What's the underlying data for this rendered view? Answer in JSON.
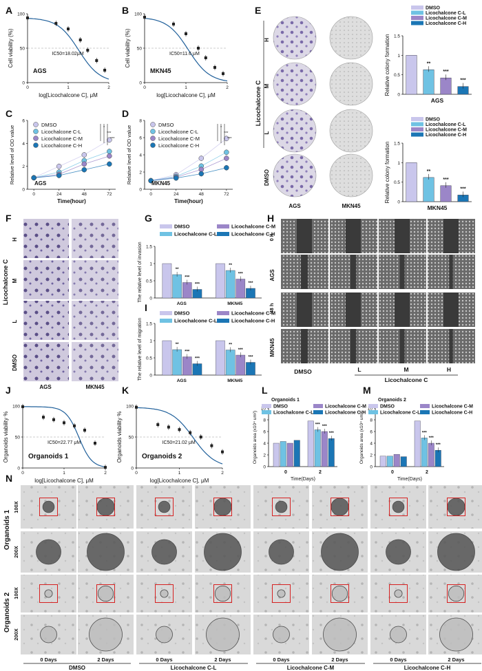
{
  "panel_letters": [
    "A",
    "B",
    "C",
    "D",
    "E",
    "F",
    "G",
    "H",
    "I",
    "J",
    "K",
    "L",
    "M",
    "N"
  ],
  "colors": {
    "dmso": "#c9c6ec",
    "cl": "#6fc2e3",
    "cm": "#9b86c8",
    "ch": "#1b76b5",
    "curve": "#1f5f9a"
  },
  "viability_ylabel": "Cell viability (%)",
  "viability_xlabel": "log[Licochalcone C], μM",
  "od_ylabel": "Relative level of OD value",
  "od_xlabel": "Time(hour)",
  "colony_ylabel": "Relative colony formation",
  "invasion_ylabel": "The relative level of invasion",
  "migration_ylabel": "The relative level of migration",
  "org_viab_ylabel": "Organoids viability %",
  "org_area_ylabel": "Organoids area (x10⁴ um²)",
  "org_area_xlabel": "Time(Days)",
  "legend": {
    "dmso": "DMSO",
    "cl": "Licochalcone C-L",
    "cm": "Licochalcone C-M",
    "ch": "Licochalcone C-H"
  },
  "stars": {
    "s2": "**",
    "s3": "***",
    "s1": "*"
  },
  "image_labels": {
    "lico_c": "Licochalcone C",
    "H": "H",
    "M": "M",
    "L": "L",
    "dmso": "DMSO",
    "ags": "AGS",
    "mkn45": "MKN45",
    "h0": "0 h",
    "h48": "48 h",
    "org1": "Organoids 1",
    "org2": "Organoids 2",
    "x100": "100X",
    "x200": "200X",
    "d0": "0 Days",
    "d2": "2 Days",
    "grp": [
      "DMSO",
      "Licochalcone C-L",
      "Licochalcone C-M",
      "Licochalcone C-H"
    ]
  },
  "chart_data": [
    {
      "panel": "A",
      "type": "scatter",
      "title": "AGS",
      "annotation": "IC50=18.02μM",
      "xlabel": "log[Licochalcone C], μM",
      "ylabel": "Cell viability (%)",
      "xlim": [
        0,
        2
      ],
      "ylim": [
        0,
        100
      ],
      "x": [
        0,
        0.7,
        1.0,
        1.3,
        1.48,
        1.7,
        1.9
      ],
      "y": [
        94,
        86,
        78,
        62,
        47,
        32,
        18
      ]
    },
    {
      "panel": "B",
      "type": "scatter",
      "title": "MKN45",
      "annotation": "IC50=11.6 μM",
      "xlabel": "log[Licochalcone C], μM",
      "ylabel": "Cell viability (%)",
      "xlim": [
        0,
        2
      ],
      "ylim": [
        0,
        100
      ],
      "x": [
        0,
        0.7,
        1.0,
        1.3,
        1.48,
        1.7,
        1.9
      ],
      "y": [
        95,
        85,
        71,
        50,
        36,
        22,
        13
      ]
    },
    {
      "panel": "C",
      "type": "line",
      "title": "AGS",
      "xlabel": "Time(hour)",
      "ylabel": "Relative level of OD value",
      "x": [
        0,
        24,
        48,
        72
      ],
      "ylim": [
        0,
        6
      ],
      "series": [
        {
          "name": "DMSO",
          "values": [
            1,
            2.0,
            3.0,
            4.3
          ]
        },
        {
          "name": "Licochalcone C-L",
          "values": [
            1,
            1.5,
            2.5,
            3.3
          ]
        },
        {
          "name": "Licochalcone C-M",
          "values": [
            1,
            1.3,
            2.2,
            2.9
          ]
        },
        {
          "name": "Licochalcone C-H",
          "values": [
            1,
            1.2,
            1.7,
            2.2
          ]
        }
      ]
    },
    {
      "panel": "D",
      "type": "line",
      "title": "MKN45",
      "xlabel": "Time(hour)",
      "ylabel": "Relative level of OD value",
      "x": [
        0,
        24,
        48,
        72
      ],
      "ylim": [
        0,
        8
      ],
      "series": [
        {
          "name": "DMSO",
          "values": [
            1,
            1.7,
            3.6,
            5.9
          ]
        },
        {
          "name": "Licochalcone C-L",
          "values": [
            1,
            1.5,
            2.7,
            4.3
          ]
        },
        {
          "name": "Licochalcone C-M",
          "values": [
            1,
            1.4,
            2.3,
            3.6
          ]
        },
        {
          "name": "Licochalcone C-H",
          "values": [
            1,
            1.3,
            1.8,
            2.5
          ]
        }
      ]
    },
    {
      "panel": "E-AGS",
      "type": "bar",
      "title": "AGS",
      "ylabel": "Relative colony formation",
      "ylim": [
        0,
        1.5
      ],
      "categories": [
        "DMSO",
        "Licochalcone C-L",
        "Licochalcone C-M",
        "Licochalcone C-H"
      ],
      "values": [
        1.0,
        0.63,
        0.42,
        0.2
      ],
      "stars": [
        "",
        "**",
        "***",
        "***"
      ]
    },
    {
      "panel": "E-MKN45",
      "type": "bar",
      "title": "MKN45",
      "ylabel": "Relative colony formation",
      "ylim": [
        0,
        1.5
      ],
      "categories": [
        "DMSO",
        "Licochalcone C-L",
        "Licochalcone C-M",
        "Licochalcone C-H"
      ],
      "values": [
        1.0,
        0.62,
        0.41,
        0.17
      ],
      "stars": [
        "",
        "**",
        "***",
        "***"
      ]
    },
    {
      "panel": "G",
      "type": "bar",
      "ylabel": "The relative level of invasion",
      "ylim": [
        0,
        1.5
      ],
      "categories": [
        "AGS",
        "MKN45"
      ],
      "series": [
        {
          "name": "DMSO",
          "values": [
            1.0,
            1.0
          ]
        },
        {
          "name": "Licochalcone C-L",
          "values": [
            0.68,
            0.8
          ]
        },
        {
          "name": "Licochalcone C-M",
          "values": [
            0.45,
            0.55
          ]
        },
        {
          "name": "Licochalcone C-H",
          "values": [
            0.25,
            0.28
          ]
        }
      ],
      "stars": [
        [
          "",
          "**",
          "***",
          "***"
        ],
        [
          "",
          "**",
          "***",
          "***"
        ]
      ]
    },
    {
      "panel": "I",
      "type": "bar",
      "ylabel": "The relative level of migration",
      "ylim": [
        0,
        1.5
      ],
      "categories": [
        "AGS",
        "MKN45"
      ],
      "series": [
        {
          "name": "DMSO",
          "values": [
            1.0,
            1.0
          ]
        },
        {
          "name": "Licochalcone C-L",
          "values": [
            0.74,
            0.73
          ]
        },
        {
          "name": "Licochalcone C-M",
          "values": [
            0.53,
            0.58
          ]
        },
        {
          "name": "Licochalcone C-H",
          "values": [
            0.33,
            0.37
          ]
        }
      ],
      "stars": [
        [
          "",
          "**",
          "***",
          "***"
        ],
        [
          "",
          "**",
          "***",
          "***"
        ]
      ]
    },
    {
      "panel": "J",
      "type": "scatter",
      "title": "Organoids 1",
      "annotation": "IC50=22.77 μM",
      "xlabel": "log[Licochalcone C], μM",
      "ylabel": "Organoids viability %",
      "xlim": [
        0,
        2
      ],
      "ylim": [
        0,
        100
      ],
      "x": [
        0,
        0.5,
        0.75,
        1.0,
        1.25,
        1.5,
        1.75,
        2.0
      ],
      "y": [
        99,
        82,
        78,
        73,
        68,
        61,
        40,
        1
      ]
    },
    {
      "panel": "K",
      "type": "scatter",
      "title": "Organoids 2",
      "annotation": "IC50=21.02 μM",
      "xlabel": "log[Licochalcone C], μM",
      "ylabel": "Organoids viability %",
      "xlim": [
        0,
        2
      ],
      "ylim": [
        0,
        100
      ],
      "x": [
        0,
        0.5,
        0.75,
        1.0,
        1.25,
        1.5,
        1.75,
        2.0
      ],
      "y": [
        98,
        70,
        66,
        62,
        57,
        50,
        36,
        26
      ]
    },
    {
      "panel": "L",
      "type": "bar",
      "title": "Organoids 1",
      "xlabel": "Time(Days)",
      "ylabel": "Organoids area (x10⁴ um²)",
      "ylim": [
        0,
        10
      ],
      "categories": [
        "0",
        "2"
      ],
      "series": [
        {
          "name": "DMSO",
          "values": [
            4.0,
            7.8
          ]
        },
        {
          "name": "Licochalcone C-L",
          "values": [
            4.3,
            6.3
          ]
        },
        {
          "name": "Licochalcone C-M",
          "values": [
            4.0,
            6.0
          ]
        },
        {
          "name": "Licochalcone C-H",
          "values": [
            4.5,
            4.8
          ]
        }
      ],
      "stars": [
        [
          "",
          "",
          "",
          ""
        ],
        [
          "",
          "***",
          "***",
          "***"
        ]
      ]
    },
    {
      "panel": "M",
      "type": "bar",
      "title": "Organoids 2",
      "xlabel": "Time(Days)",
      "ylabel": "Organoids area (x10⁴ um²)",
      "ylim": [
        0,
        10
      ],
      "categories": [
        "0",
        "2"
      ],
      "series": [
        {
          "name": "DMSO",
          "values": [
            1.8,
            7.8
          ]
        },
        {
          "name": "Licochalcone C-L",
          "values": [
            1.8,
            4.9
          ]
        },
        {
          "name": "Licochalcone C-M",
          "values": [
            2.1,
            4.0
          ]
        },
        {
          "name": "Licochalcone C-H",
          "values": [
            1.7,
            2.8
          ]
        }
      ],
      "stars": [
        [
          "",
          "",
          "",
          ""
        ],
        [
          "",
          "***",
          "***",
          "***"
        ]
      ]
    }
  ]
}
